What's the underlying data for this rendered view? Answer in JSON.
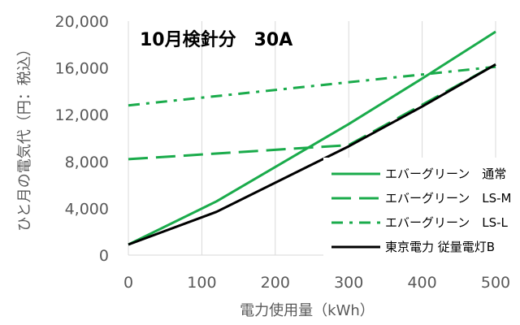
{
  "chart_data": {
    "type": "line",
    "title": "10月検針分　30A",
    "xlabel": "電力使用量（kWh）",
    "ylabel": "ひと月の電気代（円：税込）",
    "x_ticks": [
      "0",
      "100",
      "200",
      "300",
      "400",
      "500"
    ],
    "y_ticks": [
      "0",
      "4,000",
      "8,000",
      "12,000",
      "16,000",
      "20,000"
    ],
    "xlim": [
      0,
      500
    ],
    "ylim": [
      0,
      20000
    ],
    "grid": "vertical",
    "legend_position": "bottom-right",
    "series": [
      {
        "name": "エバーグリーン　通常",
        "style": "solid",
        "color": "#1aab4b",
        "x": [
          0,
          120,
          300,
          400,
          500
        ],
        "y": [
          900,
          4600,
          11200,
          15100,
          19100
        ]
      },
      {
        "name": "エバーグリーン　LS-M",
        "style": "dash",
        "color": "#1aab4b",
        "x": [
          0,
          300,
          500
        ],
        "y": [
          8200,
          9400,
          16300
        ]
      },
      {
        "name": "エバーグリーン　LS-L",
        "style": "dashdot",
        "color": "#1aab4b",
        "x": [
          0,
          500
        ],
        "y": [
          12800,
          16100
        ]
      },
      {
        "name": "東京電力 従量電灯B",
        "style": "solid",
        "color": "#000000",
        "x": [
          0,
          120,
          300,
          400,
          500
        ],
        "y": [
          900,
          3700,
          9300,
          12700,
          16300
        ]
      }
    ]
  }
}
